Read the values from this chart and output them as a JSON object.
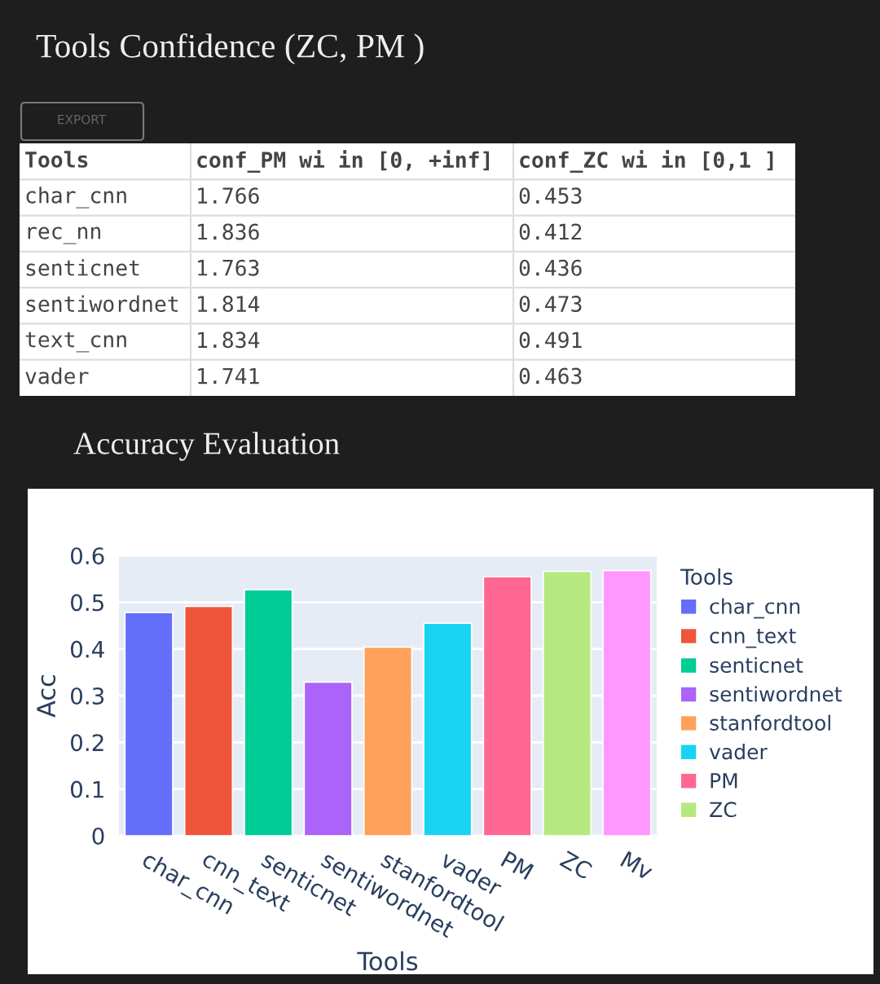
{
  "chart_data": [
    {
      "type": "other",
      "title": "Tools Confidence (ZC, PM )",
      "annotations": [
        "EXPORT"
      ],
      "categories": [
        "Tools",
        "conf_PM wi in [0, +inf]",
        "conf_ZC wi in [0,1 ]"
      ],
      "y_categories": [
        "char_cnn",
        "rec_nn",
        "senticnet",
        "sentiwordnet",
        "text_cnn",
        "vader"
      ],
      "cell_labels": [
        [
          "1.766",
          "0.453"
        ],
        [
          "1.836",
          "0.412"
        ],
        [
          "1.763",
          "0.436"
        ],
        [
          "1.814",
          "0.473"
        ],
        [
          "1.834",
          "0.491"
        ],
        [
          "1.741",
          "0.463"
        ]
      ]
    },
    {
      "type": "bar",
      "title": "Accuracy Evaluation",
      "xlabel": "Tools",
      "ylabel": "Acc",
      "legend_title": "Tools",
      "categories": [
        "char_cnn",
        "cnn_text",
        "senticnet",
        "sentiwordnet",
        "stanfordtool",
        "vader",
        "PM",
        "ZC",
        "Mv"
      ],
      "series": [
        {
          "name": "char_cnn",
          "color": "#636efa",
          "values": [
            0.478,
            null,
            null,
            null,
            null,
            null,
            null,
            null,
            null
          ]
        },
        {
          "name": "cnn_text",
          "color": "#ef553b",
          "values": [
            null,
            0.491,
            null,
            null,
            null,
            null,
            null,
            null,
            null
          ]
        },
        {
          "name": "senticnet",
          "color": "#00cc96",
          "values": [
            null,
            null,
            0.527,
            null,
            null,
            null,
            null,
            null,
            null
          ]
        },
        {
          "name": "sentiwordnet",
          "color": "#ab63fa",
          "values": [
            null,
            null,
            null,
            0.329,
            null,
            null,
            null,
            null,
            null
          ]
        },
        {
          "name": "stanfordtool",
          "color": "#ffa15a",
          "values": [
            null,
            null,
            null,
            null,
            0.404,
            null,
            null,
            null,
            null
          ]
        },
        {
          "name": "vader",
          "color": "#19d3f3",
          "values": [
            null,
            null,
            null,
            null,
            null,
            0.455,
            null,
            null,
            null
          ]
        },
        {
          "name": "PM",
          "color": "#ff6692",
          "values": [
            null,
            null,
            null,
            null,
            null,
            null,
            0.555,
            null,
            null
          ]
        },
        {
          "name": "ZC",
          "color": "#b6e880",
          "values": [
            null,
            null,
            null,
            null,
            null,
            null,
            null,
            0.566,
            null
          ]
        },
        {
          "color": "#ff97ff",
          "values": [
            null,
            null,
            null,
            null,
            null,
            null,
            null,
            null,
            0.568
          ]
        }
      ],
      "ylim": [
        0,
        0.6
      ],
      "yticks": [
        0,
        0.1,
        0.2,
        0.3,
        0.4,
        0.5,
        0.6
      ],
      "grid": "y",
      "legend": "right"
    }
  ]
}
